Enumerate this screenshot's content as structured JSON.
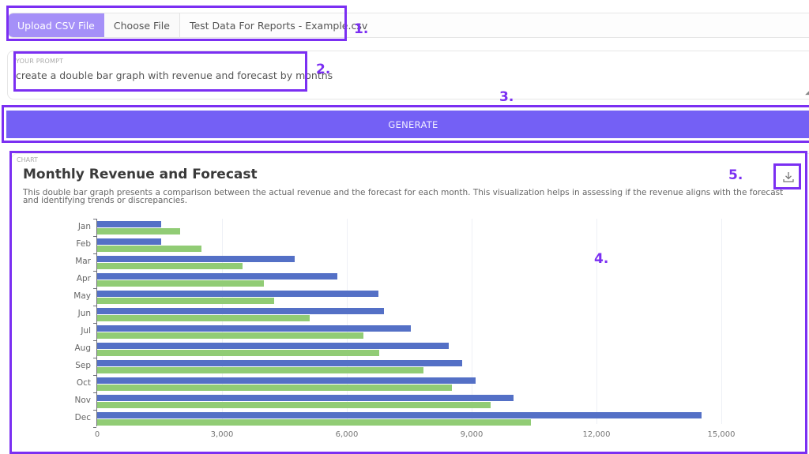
{
  "upload": {
    "label": "Upload CSV File",
    "choose_button": "Choose File",
    "file_name": "Test Data For Reports - Example.csv"
  },
  "prompt": {
    "label": "YOUR PROMPT",
    "value": "create a double bar graph with revenue and forecast by months"
  },
  "generate": {
    "label": "GENERATE"
  },
  "chart_card": {
    "tag": "CHART",
    "title": "Monthly Revenue and Forecast",
    "description": "This double bar graph presents a comparison between the actual revenue and the forecast for each month. This visualization helps in assessing if the revenue aligns with the forecast and identifying trends or discrepancies.",
    "download_icon": "download-icon"
  },
  "annotations": [
    "1.",
    "2.",
    "3.",
    "4.",
    "5."
  ],
  "colors": {
    "accent": "#7460f5",
    "upload_label_bg": "#a590f8",
    "annotation": "#7b2ff2",
    "revenue": "#5470c6",
    "forecast": "#91cc75"
  },
  "chart_data": {
    "type": "bar",
    "orientation": "horizontal",
    "title": "Monthly Revenue and Forecast",
    "categories": [
      "Jan",
      "Feb",
      "Mar",
      "Apr",
      "May",
      "Jun",
      "Jul",
      "Aug",
      "Sep",
      "Oct",
      "Nov",
      "Dec"
    ],
    "series": [
      {
        "name": "Revenue",
        "color": "#5470c6",
        "values": [
          1540,
          1540,
          4750,
          5780,
          6750,
          6900,
          7530,
          8450,
          8780,
          9100,
          10000,
          14520
        ]
      },
      {
        "name": "Forecast",
        "color": "#91cc75",
        "values": [
          2000,
          2500,
          3500,
          4000,
          4250,
          5100,
          6400,
          6780,
          7850,
          8530,
          9460,
          10420
        ]
      }
    ],
    "x_ticks": [
      "0",
      "3,000",
      "6,000",
      "9,000",
      "12,000",
      "15,000"
    ],
    "xlim": [
      0,
      16500
    ],
    "xlabel": "",
    "ylabel": "",
    "grid": true,
    "legend": "none"
  }
}
